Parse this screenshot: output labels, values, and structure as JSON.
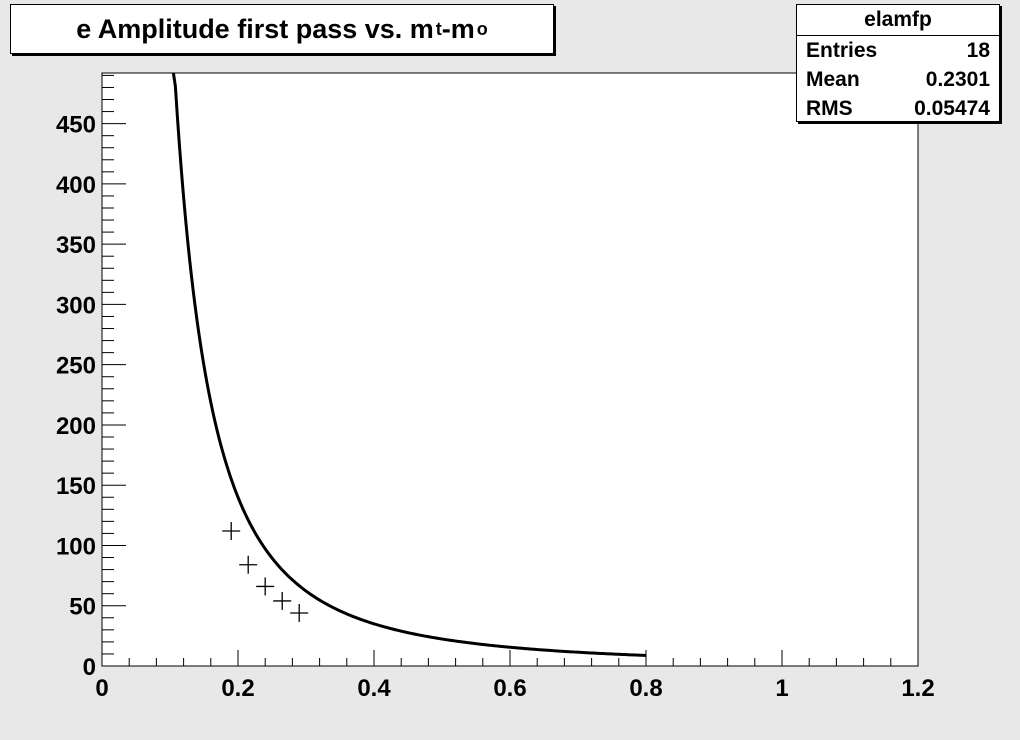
{
  "title": {
    "main": "e Amplitude first pass vs. m",
    "sub1": "t",
    "mid": "-m",
    "sub2": "o"
  },
  "stats": {
    "name": "elamfp",
    "rows": [
      {
        "label": "Entries",
        "value": "18"
      },
      {
        "label": "Mean",
        "value": "0.2301"
      },
      {
        "label": "RMS",
        "value": "0.05474"
      }
    ]
  },
  "chart_data": {
    "type": "scatter",
    "title": "e Amplitude first pass vs. m_t-m_o",
    "xlabel": "",
    "ylabel": "",
    "xlim": [
      0,
      1.2
    ],
    "ylim": [
      0,
      492
    ],
    "x_ticks": [
      0,
      0.2,
      0.4,
      0.6,
      0.8,
      1,
      1.2
    ],
    "x_tick_labels": [
      "0",
      "0.2",
      "0.4",
      "0.6",
      "0.8",
      "1",
      "1.2"
    ],
    "y_ticks": [
      0,
      50,
      100,
      150,
      200,
      250,
      300,
      350,
      400,
      450
    ],
    "y_tick_labels": [
      "0",
      "50",
      "100",
      "150",
      "200",
      "250",
      "300",
      "350",
      "400",
      "450"
    ],
    "series": [
      {
        "points": [
          {
            "x": 0.19,
            "y": 112
          },
          {
            "x": 0.215,
            "y": 84
          },
          {
            "x": 0.24,
            "y": 66
          },
          {
            "x": 0.265,
            "y": 54
          },
          {
            "x": 0.29,
            "y": 44
          }
        ],
        "marker": "plus"
      }
    ],
    "fit_curve": {
      "function": "A / x^2",
      "A": 5.6,
      "x_range": [
        0.105,
        0.8
      ]
    },
    "grid": false,
    "colors": {
      "background": "#e8e8e8",
      "plot_area": "#ffffff",
      "line": "#000000"
    }
  }
}
